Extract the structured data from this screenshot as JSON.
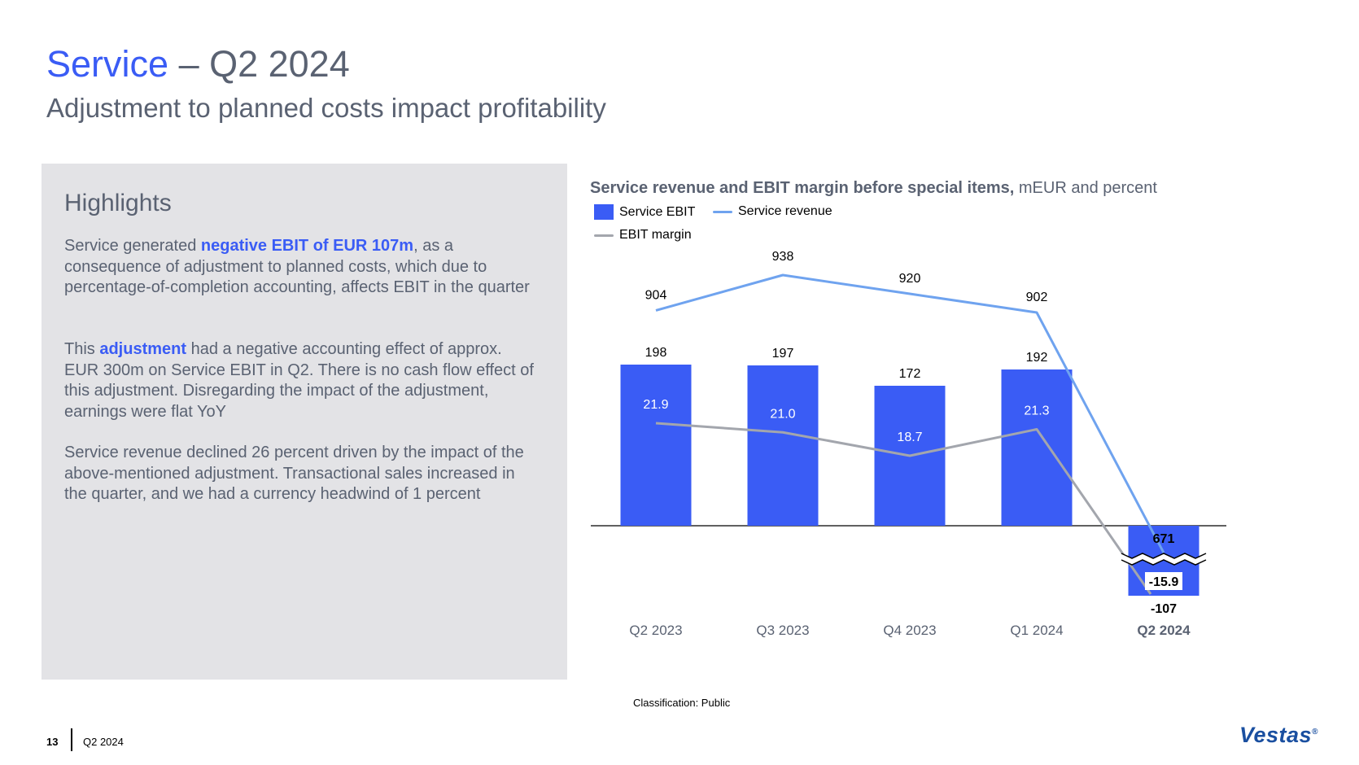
{
  "header": {
    "title_accent": "Service",
    "title_rest": " – Q2 2024",
    "subtitle": "Adjustment to planned costs impact profitability"
  },
  "highlights": {
    "heading": "Highlights",
    "p1": {
      "before": "Service generated ",
      "bold": "negative EBIT of EUR 107m",
      "after": ", as a consequence of adjustment to planned costs, which due to percentage-of-completion accounting, affects EBIT in the quarter"
    },
    "p2": {
      "before": "This ",
      "bold": "adjustment",
      "after": " had a negative accounting effect of approx. EUR 300m on Service EBIT in Q2. There is no cash flow effect of this adjustment. Disregarding the impact of the adjustment, earnings were flat YoY"
    },
    "p3": "Service revenue declined 26 percent driven by the impact of the above-mentioned adjustment. Transactional sales increased in the quarter, and we had a currency headwind of 1 percent"
  },
  "chart_data": {
    "type": "bar",
    "title_bold": "Service revenue and EBIT margin before special items,",
    "title_rest": " mEUR and percent",
    "categories": [
      "Q2 2023",
      "Q3 2023",
      "Q4 2023",
      "Q1 2024",
      "Q2 2024"
    ],
    "highlight_category": "Q2 2024",
    "series": [
      {
        "name": "Service EBIT",
        "kind": "bar",
        "color": "#3a5cf5",
        "values": [
          198,
          197,
          172,
          192,
          -107
        ]
      },
      {
        "name": "Service revenue",
        "kind": "line",
        "color": "#6fa3ef",
        "values": [
          904,
          938,
          920,
          902,
          671
        ]
      },
      {
        "name": "EBIT margin",
        "kind": "line",
        "color": "#a3a6ad",
        "values": [
          21.9,
          21.0,
          18.7,
          21.3,
          -15.9
        ]
      }
    ],
    "labels": {
      "ebit": [
        "198",
        "197",
        "172",
        "192",
        "-107"
      ],
      "revenue": [
        "904",
        "938",
        "920",
        "902",
        "671"
      ],
      "margin": [
        "21.9",
        "21.0",
        "18.7",
        "21.3",
        "-15.9"
      ]
    },
    "axis_break": true,
    "grid": false
  },
  "footer": {
    "classification": "Classification: Public",
    "page": "13",
    "period": "Q2 2024",
    "logo": "Vestas",
    "logo_mark": "®"
  }
}
